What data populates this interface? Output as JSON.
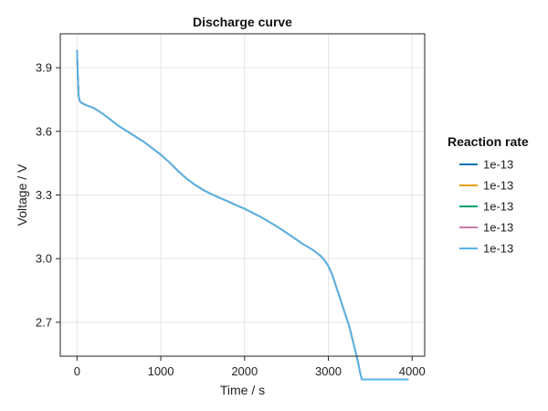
{
  "chart_data": {
    "type": "line",
    "title": "Discharge curve",
    "xlabel": "Time / s",
    "ylabel": "Voltage / V",
    "xlim": [
      -200,
      4150
    ],
    "ylim": [
      2.54,
      4.06
    ],
    "xticks": [
      0,
      1000,
      2000,
      3000,
      4000
    ],
    "yticks": [
      2.7,
      3.0,
      3.3,
      3.6,
      3.9
    ],
    "grid": true,
    "legend": {
      "title": "Reaction rate",
      "position": "right"
    },
    "series": [
      {
        "name": "1e-13",
        "color": "#0072b2"
      },
      {
        "name": "1e-13",
        "color": "#e69f00"
      },
      {
        "name": "1e-13",
        "color": "#009e73"
      },
      {
        "name": "1e-13",
        "color": "#cc79a7"
      },
      {
        "name": "1e-13",
        "color": "#56b4e9"
      }
    ],
    "x": [
      0,
      10,
      20,
      30,
      50,
      100,
      200,
      300,
      400,
      500,
      600,
      700,
      800,
      900,
      1000,
      1100,
      1200,
      1300,
      1400,
      1500,
      1600,
      1700,
      1800,
      1900,
      2000,
      2100,
      2200,
      2300,
      2400,
      2500,
      2600,
      2700,
      2800,
      2900,
      2950,
      3000,
      3050,
      3100,
      3150,
      3200,
      3250,
      3300,
      3350,
      3380,
      3400,
      3450,
      3500,
      3600,
      3800,
      3950
    ],
    "y": [
      3.98,
      3.85,
      3.77,
      3.745,
      3.735,
      3.725,
      3.71,
      3.685,
      3.655,
      3.625,
      3.6,
      3.575,
      3.55,
      3.52,
      3.49,
      3.455,
      3.415,
      3.38,
      3.35,
      3.325,
      3.305,
      3.287,
      3.27,
      3.252,
      3.235,
      3.215,
      3.195,
      3.172,
      3.148,
      3.122,
      3.095,
      3.068,
      3.045,
      3.015,
      2.995,
      2.965,
      2.92,
      2.86,
      2.8,
      2.74,
      2.68,
      2.6,
      2.52,
      2.46,
      2.43,
      2.43,
      2.43,
      2.43,
      2.43,
      2.43
    ]
  }
}
